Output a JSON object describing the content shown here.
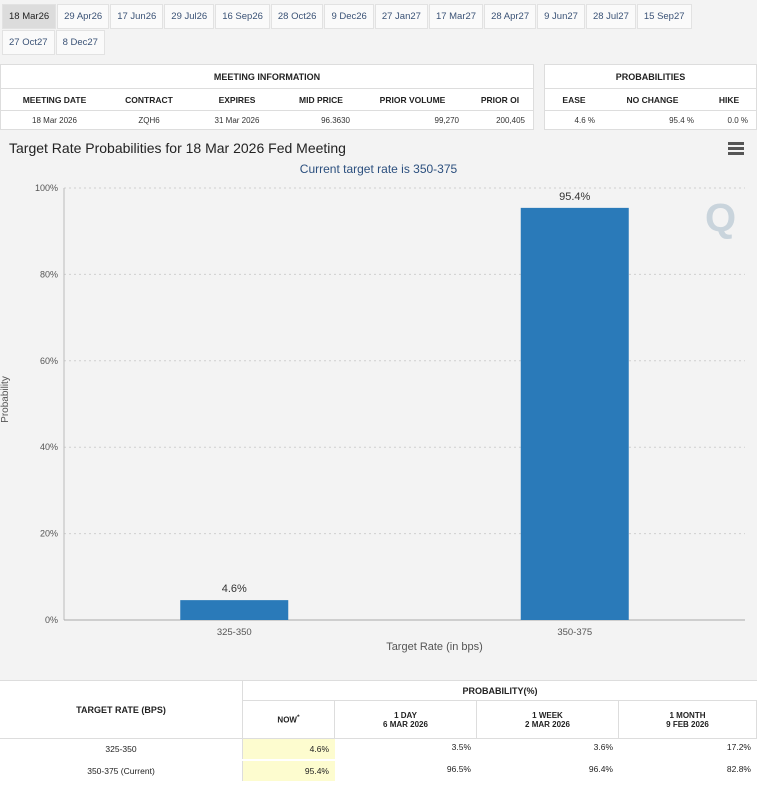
{
  "tabs": {
    "row1": [
      "18 Mar26",
      "29 Apr26",
      "17 Jun26",
      "29 Jul26",
      "16 Sep26",
      "28 Oct26",
      "9 Dec26",
      "27 Jan27",
      "17 Mar27",
      "28 Apr27",
      "9 Jun27",
      "28 Jul27",
      "15 Sep27"
    ],
    "row2": [
      "27 Oct27",
      "8 Dec27"
    ],
    "active": "18 Mar26"
  },
  "meeting_info": {
    "title": "MEETING INFORMATION",
    "headers": [
      "MEETING DATE",
      "CONTRACT",
      "EXPIRES",
      "MID PRICE",
      "PRIOR VOLUME",
      "PRIOR OI"
    ],
    "values": [
      "18 Mar 2026",
      "ZQH6",
      "31 Mar 2026",
      "96.3630",
      "99,270",
      "200,405"
    ]
  },
  "probabilities": {
    "title": "PROBABILITIES",
    "headers": [
      "EASE",
      "NO CHANGE",
      "HIKE"
    ],
    "values": [
      "4.6 %",
      "95.4 %",
      "0.0 %"
    ]
  },
  "chart": {
    "title": "Target Rate Probabilities for 18 Mar 2026 Fed Meeting",
    "subtitle": "Current target rate is 350-375",
    "watermark": "Q",
    "menu_icon": "hamburger-menu-icon",
    "bar_color": "#2a7ab9"
  },
  "chart_data": {
    "type": "bar",
    "categories": [
      "325-350",
      "350-375"
    ],
    "values": [
      4.6,
      95.4
    ],
    "data_labels": [
      "4.6%",
      "95.4%"
    ],
    "title": "Target Rate Probabilities for 18 Mar 2026 Fed Meeting",
    "subtitle": "Current target rate is 350-375",
    "xlabel": "Target Rate (in bps)",
    "ylabel": "Probability",
    "ylim": [
      0,
      100
    ],
    "yticks": [
      "0%",
      "20%",
      "40%",
      "60%",
      "80%",
      "100%"
    ],
    "grid": true
  },
  "bottom_table": {
    "rate_header": "TARGET RATE (BPS)",
    "prob_header": "PROBABILITY(%)",
    "columns": [
      {
        "label": "NOW",
        "sup": "*",
        "sub": ""
      },
      {
        "label": "1 DAY",
        "sub": "6 MAR 2026"
      },
      {
        "label": "1 WEEK",
        "sub": "2 MAR 2026"
      },
      {
        "label": "1 MONTH",
        "sub": "9 FEB 2026"
      }
    ],
    "rows": [
      {
        "rate": "325-350",
        "values": [
          "4.6%",
          "3.5%",
          "3.6%",
          "17.2%"
        ]
      },
      {
        "rate": "350-375 (Current)",
        "values": [
          "95.4%",
          "96.5%",
          "96.4%",
          "82.8%"
        ]
      }
    ]
  }
}
